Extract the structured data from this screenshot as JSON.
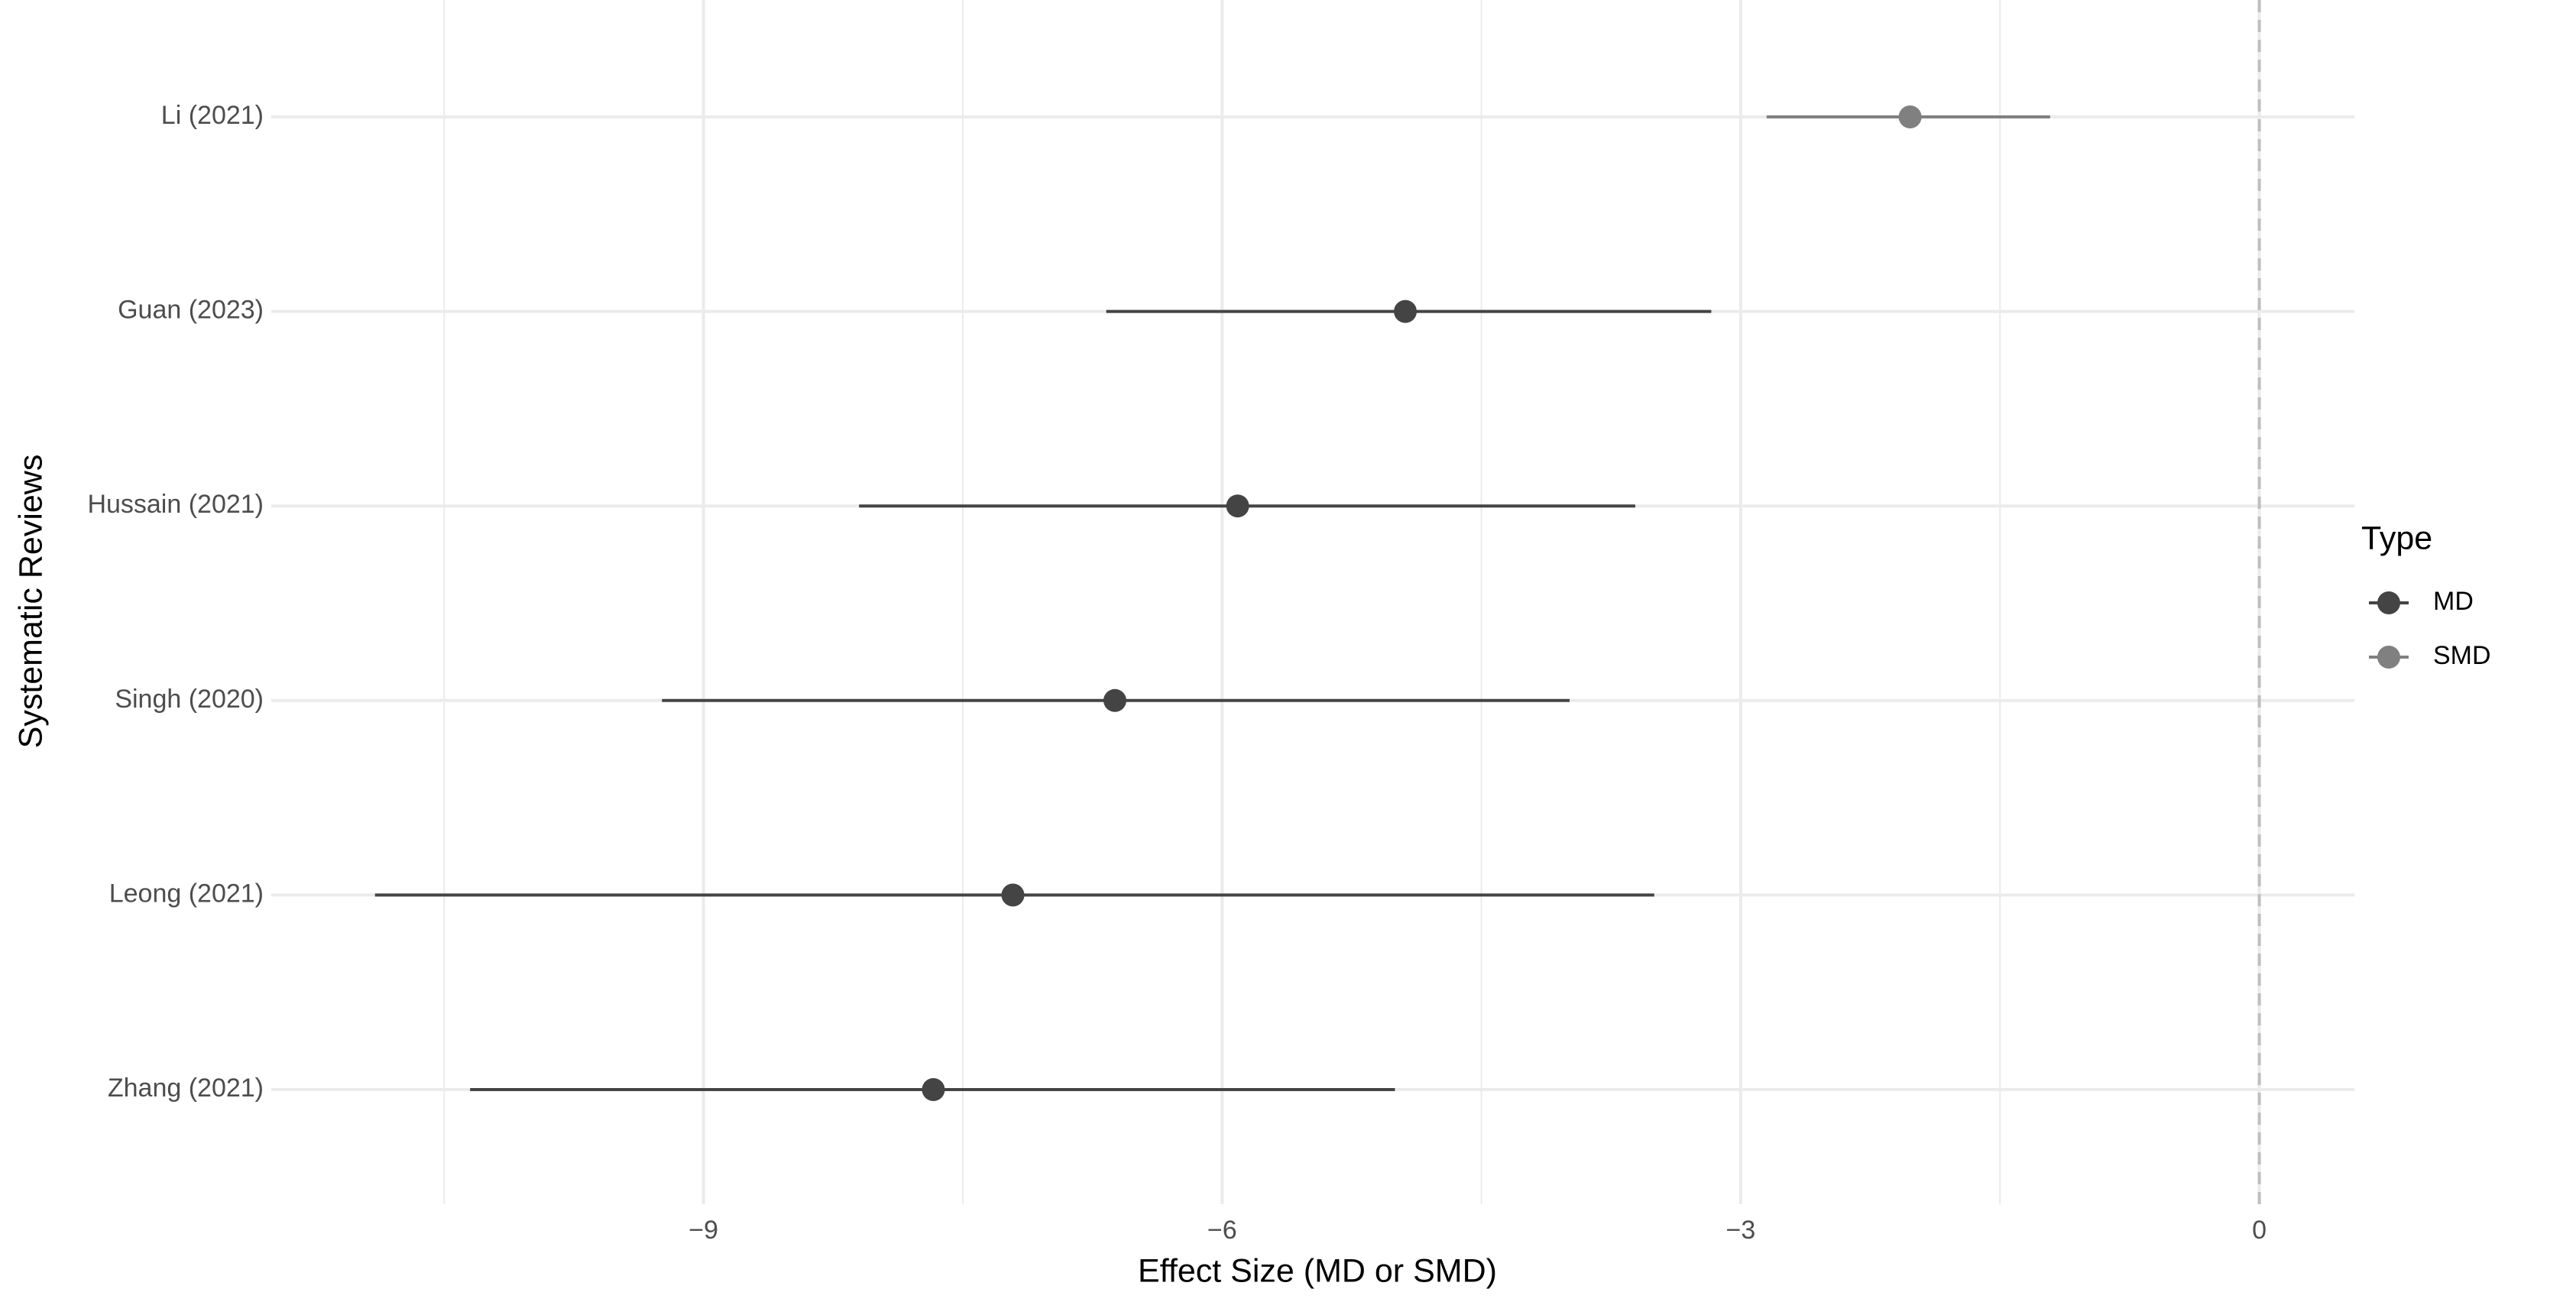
{
  "chart_data": {
    "type": "forest",
    "x_label": "Effect Size (MD or SMD)",
    "y_label": "Systematic Reviews",
    "legend_title": "Type",
    "legend_position": "right",
    "categories": [
      "Li (2021)",
      "Guan (2023)",
      "Hussain (2021)",
      "Singh (2020)",
      "Leong (2021)",
      "Zhang (2021)"
    ],
    "series": [
      {
        "name": "MD",
        "color": "#444444",
        "values": [
          null,
          -4.94,
          -5.91,
          -6.62,
          -7.21,
          -7.67
        ],
        "lower": [
          null,
          -6.67,
          -8.1,
          -9.24,
          -10.9,
          -10.35
        ],
        "upper": [
          null,
          -3.17,
          -3.61,
          -3.99,
          -3.5,
          -5.0
        ]
      },
      {
        "name": "SMD",
        "color": "#808080",
        "values": [
          -2.02,
          null,
          null,
          null,
          null,
          null
        ],
        "lower": [
          -2.85,
          null,
          null,
          null,
          null,
          null
        ],
        "upper": [
          -1.21,
          null,
          null,
          null,
          null,
          null
        ]
      }
    ],
    "xlim": [
      -11.5,
      0.55
    ],
    "xticks": [
      {
        "value": -9,
        "label": "−9"
      },
      {
        "value": -6,
        "label": "−6"
      },
      {
        "value": -3,
        "label": "−3"
      },
      0
    ],
    "minor_xticks": [
      -10.5,
      -7.5,
      -4.5,
      -1.5
    ],
    "reference_line": 0,
    "grid": true
  }
}
